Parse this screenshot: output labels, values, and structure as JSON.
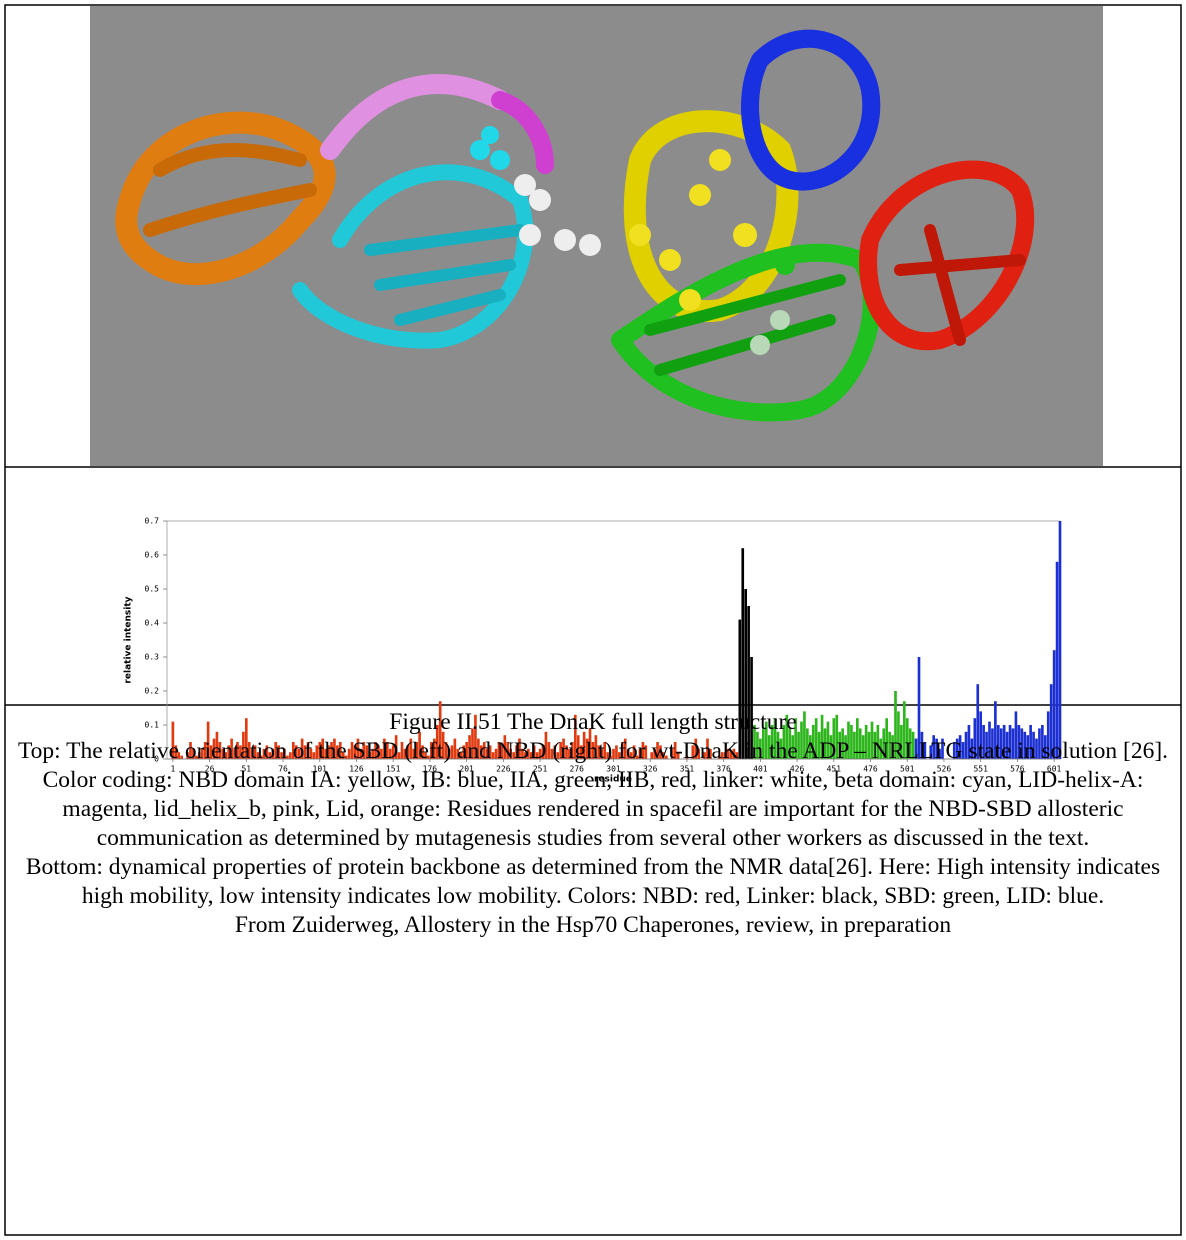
{
  "chart_data": {
    "type": "bar",
    "xlabel": "residue",
    "ylabel": "relative intensity",
    "xlim": [
      -3,
      605
    ],
    "ylim": [
      0,
      0.7
    ],
    "xticks": [
      1,
      26,
      51,
      76,
      101,
      126,
      151,
      176,
      201,
      226,
      251,
      276,
      301,
      326,
      351,
      376,
      401,
      426,
      451,
      476,
      501,
      526,
      551,
      576,
      601
    ],
    "yticks": [
      0,
      0.1,
      0.2,
      0.3,
      0.4,
      0.5,
      0.6,
      0.7
    ],
    "series": [
      {
        "color": "#e03a10",
        "x": [
          1,
          3,
          5,
          7,
          9,
          11,
          13,
          15,
          17,
          19,
          21,
          23,
          25,
          27,
          29,
          31,
          33,
          35,
          37,
          39,
          41,
          43,
          45,
          47,
          49,
          51,
          53,
          55,
          57,
          59,
          61,
          63,
          65,
          67,
          69,
          71,
          73,
          75,
          77,
          79,
          81,
          83,
          85,
          87,
          89,
          91,
          93,
          95,
          97,
          99,
          101,
          103,
          105,
          107,
          109,
          111,
          113,
          115,
          117,
          119,
          121,
          123,
          125,
          127,
          129,
          131,
          133,
          135,
          137,
          139,
          141,
          143,
          145,
          147,
          149,
          151,
          153,
          155,
          157,
          159,
          161,
          163,
          165,
          167,
          169,
          171,
          173,
          175,
          177,
          179,
          181,
          183,
          185,
          187,
          189,
          191,
          193,
          195,
          197,
          199,
          201,
          203,
          205,
          207,
          209,
          211,
          213,
          215,
          217,
          219,
          221,
          223,
          225,
          227,
          229,
          231,
          233,
          235,
          237,
          239,
          241,
          243,
          245,
          247,
          249,
          251,
          253,
          255,
          257,
          259,
          261,
          263,
          265,
          267,
          269,
          271,
          273,
          275,
          277,
          279,
          281,
          283,
          285,
          287,
          289,
          291,
          293,
          295,
          297,
          299,
          301,
          303,
          305,
          307,
          309,
          311,
          313,
          315,
          317,
          319,
          321,
          323,
          325,
          327,
          329,
          331,
          333,
          335,
          337,
          339,
          341,
          343,
          345,
          347,
          349,
          351,
          353,
          355,
          357,
          359,
          361,
          363,
          365,
          367,
          369,
          371,
          373,
          375,
          377,
          379,
          381,
          383,
          385
        ],
        "values": [
          0.11,
          0.04,
          0.02,
          0.01,
          0,
          0.02,
          0.05,
          0.03,
          0.01,
          0.02,
          0.03,
          0.05,
          0.11,
          0.04,
          0.06,
          0.08,
          0.05,
          0.03,
          0.02,
          0.04,
          0.06,
          0.03,
          0.05,
          0.04,
          0.08,
          0.12,
          0.05,
          0.03,
          0.04,
          0.02,
          0.01,
          0.03,
          0.04,
          0.02,
          0.03,
          0.05,
          0.04,
          0.02,
          0.03,
          0.01,
          0.02,
          0.05,
          0.04,
          0.03,
          0.06,
          0.04,
          0.05,
          0.03,
          0.02,
          0.04,
          0.05,
          0.06,
          0.03,
          0.04,
          0.05,
          0.06,
          0.04,
          0.05,
          0.02,
          0.01,
          0.03,
          0.05,
          0.04,
          0.06,
          0.03,
          0.05,
          0.04,
          0.02,
          0.03,
          0.05,
          0.04,
          0.03,
          0.06,
          0.05,
          0.03,
          0.04,
          0.07,
          0.02,
          0.05,
          0.03,
          0.04,
          0.06,
          0.03,
          0.05,
          0.08,
          0.04,
          0.02,
          0.01,
          0.05,
          0.06,
          0.1,
          0.17,
          0.08,
          0.05,
          0.03,
          0.04,
          0.06,
          0.03,
          0.02,
          0.04,
          0.05,
          0.07,
          0.09,
          0.13,
          0.06,
          0.04,
          0.05,
          0.03,
          0.04,
          0.02,
          0.03,
          0.05,
          0.04,
          0.07,
          0.05,
          0.03,
          0.02,
          0.04,
          0.06,
          0.03,
          0.02,
          0.03,
          0.02,
          0.04,
          0.02,
          0.03,
          0.04,
          0.08,
          0.05,
          0.03,
          0.04,
          0.02,
          0.05,
          0.06,
          0.04,
          0.03,
          0.05,
          0.13,
          0.07,
          0.04,
          0.08,
          0.06,
          0.09,
          0.05,
          0.07,
          0.04,
          0.03,
          0.05,
          0.02,
          0.01,
          0.03,
          0.04,
          0.02,
          0.05,
          0.06,
          0.03,
          0.02,
          0.04,
          0.01,
          0.03,
          0.05,
          0.04,
          0,
          0.02,
          0.03,
          0.05,
          0.04,
          0.02,
          0.01,
          0,
          0.03,
          0.05,
          0.02,
          0,
          0,
          0.01,
          0,
          0.04,
          0.06,
          0.03,
          0,
          0.02,
          0.06,
          0.03,
          0,
          0,
          0.01,
          0.02,
          0.02,
          0.03,
          0.02,
          0.03,
          0.02
        ]
      },
      {
        "color": "#000000",
        "x": [
          387,
          389,
          391,
          393,
          395
        ],
        "values": [
          0.41,
          0.62,
          0.5,
          0.45,
          0.3
        ]
      },
      {
        "color": "#2db51c",
        "x": [
          397,
          399,
          401,
          403,
          405,
          407,
          409,
          411,
          413,
          415,
          417,
          419,
          421,
          423,
          425,
          427,
          429,
          431,
          433,
          435,
          437,
          439,
          441,
          443,
          445,
          447,
          449,
          451,
          453,
          455,
          457,
          459,
          461,
          463,
          465,
          467,
          469,
          471,
          473,
          475,
          477,
          479,
          481,
          483,
          485,
          487,
          489,
          491,
          493,
          495,
          497,
          499,
          501,
          503,
          505
        ],
        "values": [
          0.1,
          0.08,
          0.06,
          0.09,
          0.11,
          0.07,
          0.1,
          0.12,
          0.08,
          0.06,
          0.1,
          0.13,
          0.09,
          0.07,
          0.12,
          0.08,
          0.11,
          0.14,
          0.09,
          0.07,
          0.1,
          0.12,
          0.08,
          0.13,
          0.09,
          0.11,
          0.07,
          0.12,
          0.13,
          0.08,
          0.09,
          0.07,
          0.11,
          0.1,
          0.08,
          0.12,
          0.09,
          0.07,
          0.1,
          0.08,
          0.11,
          0.08,
          0.1,
          0.06,
          0.09,
          0.12,
          0.08,
          0.07,
          0.2,
          0.14,
          0.1,
          0.17,
          0.12,
          0.09,
          0.08
        ]
      },
      {
        "color": "#1c2fd0",
        "x": [
          507,
          509,
          511,
          513,
          515,
          517,
          519,
          521,
          523,
          525,
          527,
          529,
          531,
          533,
          535,
          537,
          539,
          541,
          543,
          545,
          547,
          549,
          551,
          553,
          555,
          557,
          559,
          561,
          563,
          565,
          567,
          569,
          571,
          573,
          575,
          577,
          579,
          581,
          583,
          585,
          587,
          589,
          591,
          593,
          595,
          597,
          599,
          601,
          603,
          605
        ],
        "values": [
          0.06,
          0.3,
          0.08,
          0.05,
          0,
          0.04,
          0.07,
          0.06,
          0.03,
          0.06,
          0,
          0,
          0,
          0.05,
          0.06,
          0.07,
          0.05,
          0.08,
          0.1,
          0.06,
          0.12,
          0.22,
          0.14,
          0.1,
          0.08,
          0.11,
          0.09,
          0.17,
          0.1,
          0.09,
          0.1,
          0.08,
          0.1,
          0.09,
          0.14,
          0.1,
          0.09,
          0.08,
          0.07,
          0.1,
          0.08,
          0.06,
          0.09,
          0.1,
          0.07,
          0.14,
          0.22,
          0.32,
          0.58,
          0.7
        ]
      }
    ]
  },
  "caption": {
    "title": "Figure II.51 The DnaK full length structure",
    "paragraphs": [
      "Top: The relative orientation of the SBD (left) and NBD (right) for wt-DnaK in the ADP – NRLLTG state in solution [26]. Color coding:  NBD domain IA: yellow, IB: blue, IIA, green, IIB, red, linker: white, beta domain: cyan, LID-helix-A: magenta, lid_helix_b, pink, Lid, orange: Residues rendered in spacefil are important for the NBD-SBD allosteric communication as determined by mutagenesis studies from several other workers as discussed in the text.",
      "Bottom: dynamical properties of protein backbone as determined from the NMR data[26]. Here: High intensity indicates high mobility, low intensity indicates low mobility. Colors: NBD: red, Linker: black, SBD: green, LID: blue."
    ],
    "source": "From Zuiderweg, Allostery in the Hsp70 Chaperones, review, in preparation"
  }
}
